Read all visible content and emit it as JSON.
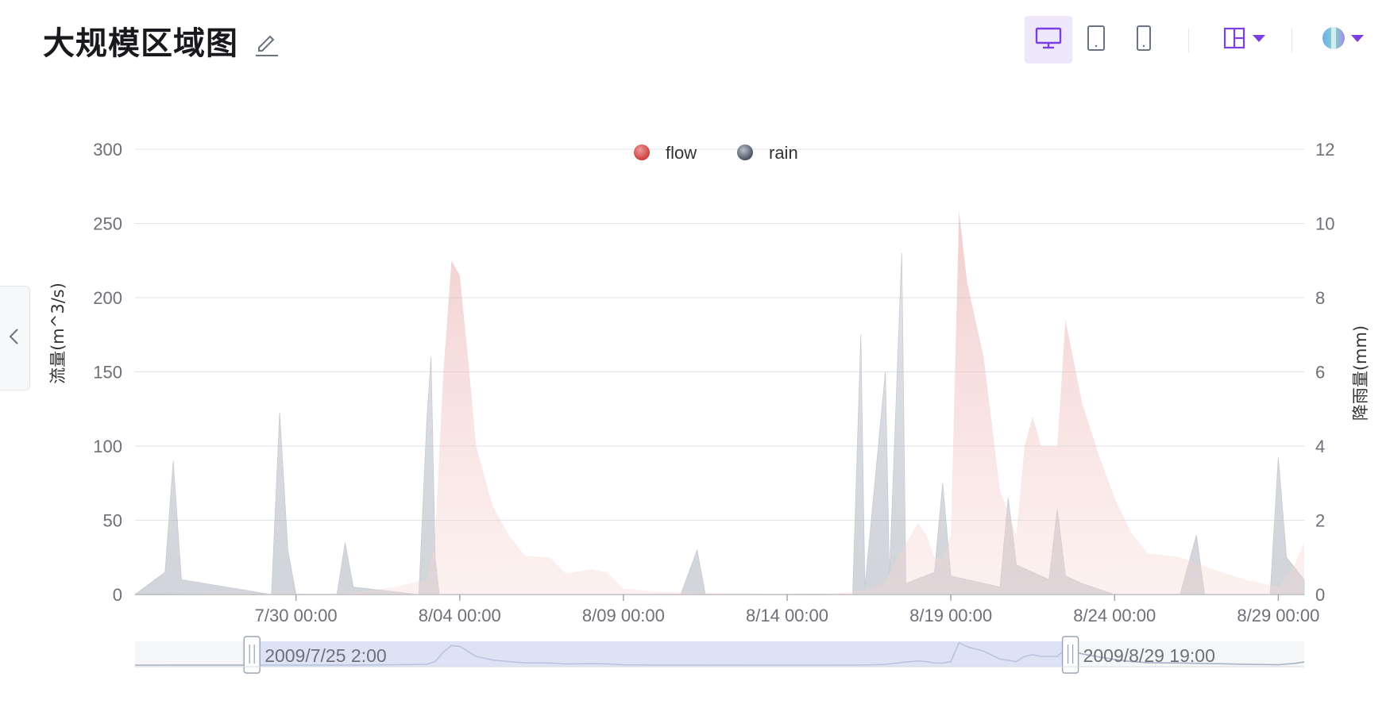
{
  "header": {
    "title": "大规模区域图",
    "icons": [
      "edit-icon",
      "desktop-icon",
      "tablet-icon",
      "mobile-icon",
      "layout-icon",
      "theme-icon"
    ],
    "accent": "#7b3fe4",
    "active_view": "desktop"
  },
  "sidebar_toggle": {
    "icon": "chevron-left-icon"
  },
  "chart_data": {
    "type": "area",
    "x_type": "time",
    "x_range": [
      "2009-07-25 02:00",
      "2009-08-29 19:00"
    ],
    "x_ticks": [
      "7/30 00:00",
      "8/04 00:00",
      "8/09 00:00",
      "8/14 00:00",
      "8/19 00:00",
      "8/24 00:00",
      "8/29 00:00"
    ],
    "y_left": {
      "label": "流量(m^3/s)",
      "range": [
        0,
        300
      ],
      "ticks": [
        "0",
        "50",
        "100",
        "150",
        "200",
        "250",
        "300"
      ]
    },
    "y_right": {
      "label": "降雨量(mm)",
      "range": [
        0,
        12
      ],
      "ticks": [
        "0",
        "2",
        "4",
        "6",
        "8",
        "10",
        "12"
      ],
      "inverse": false
    },
    "legend": {
      "position": "top-center",
      "items": [
        "flow",
        "rain"
      ]
    },
    "grid": true,
    "series": [
      {
        "name": "flow",
        "axis": "left",
        "color": "#d64a4a",
        "points": [
          [
            "2009-07-25 02:00",
            0
          ],
          [
            "2009-07-27 00:00",
            0.5
          ],
          [
            "2009-07-31 00:00",
            0.5
          ],
          [
            "2009-08-01 00:00",
            2
          ],
          [
            "2009-08-02 00:00",
            5
          ],
          [
            "2009-08-03 00:00",
            10
          ],
          [
            "2009-08-03 06:00",
            40
          ],
          [
            "2009-08-03 12:00",
            150
          ],
          [
            "2009-08-03 18:00",
            225
          ],
          [
            "2009-08-04 00:00",
            215
          ],
          [
            "2009-08-04 06:00",
            160
          ],
          [
            "2009-08-04 12:00",
            100
          ],
          [
            "2009-08-05 00:00",
            60
          ],
          [
            "2009-08-05 12:00",
            40
          ],
          [
            "2009-08-06 00:00",
            26
          ],
          [
            "2009-08-06 18:00",
            25
          ],
          [
            "2009-08-07 06:00",
            14
          ],
          [
            "2009-08-08 00:00",
            17
          ],
          [
            "2009-08-08 12:00",
            15
          ],
          [
            "2009-08-09 00:00",
            4
          ],
          [
            "2009-08-10 00:00",
            2
          ],
          [
            "2009-08-12 00:00",
            1
          ],
          [
            "2009-08-15 00:00",
            0
          ],
          [
            "2009-08-16 12:00",
            3
          ],
          [
            "2009-08-17 00:00",
            8
          ],
          [
            "2009-08-17 12:00",
            30
          ],
          [
            "2009-08-18 00:00",
            48
          ],
          [
            "2009-08-18 06:00",
            40
          ],
          [
            "2009-08-18 12:00",
            25
          ],
          [
            "2009-08-18 18:00",
            24
          ],
          [
            "2009-08-19 00:00",
            40
          ],
          [
            "2009-08-19 06:00",
            258
          ],
          [
            "2009-08-19 12:00",
            210
          ],
          [
            "2009-08-20 00:00",
            160
          ],
          [
            "2009-08-20 12:00",
            70
          ],
          [
            "2009-08-21 00:00",
            40
          ],
          [
            "2009-08-21 06:00",
            100
          ],
          [
            "2009-08-21 12:00",
            120
          ],
          [
            "2009-08-21 18:00",
            100
          ],
          [
            "2009-08-22 06:00",
            100
          ],
          [
            "2009-08-22 12:00",
            185
          ],
          [
            "2009-08-23 00:00",
            130
          ],
          [
            "2009-08-23 12:00",
            95
          ],
          [
            "2009-08-24 00:00",
            65
          ],
          [
            "2009-08-24 12:00",
            42
          ],
          [
            "2009-08-25 00:00",
            28
          ],
          [
            "2009-08-26 00:00",
            25
          ],
          [
            "2009-08-27 00:00",
            17
          ],
          [
            "2009-08-28 00:00",
            10
          ],
          [
            "2009-08-29 00:00",
            5
          ],
          [
            "2009-08-29 12:00",
            20
          ],
          [
            "2009-08-29 19:00",
            35
          ]
        ]
      },
      {
        "name": "rain",
        "axis": "right",
        "color": "#5a6478",
        "points": [
          [
            "2009-07-25 02:00",
            0
          ],
          [
            "2009-07-26 00:00",
            0.6
          ],
          [
            "2009-07-26 06:00",
            3.6
          ],
          [
            "2009-07-26 12:00",
            0.4
          ],
          [
            "2009-07-29 06:00",
            0
          ],
          [
            "2009-07-29 12:00",
            4.9
          ],
          [
            "2009-07-29 18:00",
            1.2
          ],
          [
            "2009-07-30 00:00",
            0
          ],
          [
            "2009-07-31 06:00",
            0
          ],
          [
            "2009-07-31 12:00",
            1.4
          ],
          [
            "2009-07-31 18:00",
            0.2
          ],
          [
            "2009-08-02 18:00",
            0
          ],
          [
            "2009-08-03 00:00",
            4.8
          ],
          [
            "2009-08-03 03:00",
            6.4
          ],
          [
            "2009-08-03 06:00",
            1
          ],
          [
            "2009-08-03 09:00",
            0
          ],
          [
            "2009-08-10 18:00",
            0
          ],
          [
            "2009-08-11 06:00",
            1.2
          ],
          [
            "2009-08-11 12:00",
            0
          ],
          [
            "2009-08-16 00:00",
            0
          ],
          [
            "2009-08-16 06:00",
            7
          ],
          [
            "2009-08-16 09:00",
            0.2
          ],
          [
            "2009-08-17 00:00",
            6
          ],
          [
            "2009-08-17 03:00",
            0.5
          ],
          [
            "2009-08-17 12:00",
            9.2
          ],
          [
            "2009-08-17 15:00",
            0.3
          ],
          [
            "2009-08-18 12:00",
            0.6
          ],
          [
            "2009-08-18 18:00",
            3
          ],
          [
            "2009-08-19 00:00",
            0.5
          ],
          [
            "2009-08-20 12:00",
            0.2
          ],
          [
            "2009-08-20 18:00",
            2.6
          ],
          [
            "2009-08-21 00:00",
            0.8
          ],
          [
            "2009-08-21 12:00",
            0.6
          ],
          [
            "2009-08-22 00:00",
            0.4
          ],
          [
            "2009-08-22 06:00",
            2.3
          ],
          [
            "2009-08-22 12:00",
            0.5
          ],
          [
            "2009-08-23 00:00",
            0.3
          ],
          [
            "2009-08-24 00:00",
            0
          ],
          [
            "2009-08-26 00:00",
            0
          ],
          [
            "2009-08-26 12:00",
            1.6
          ],
          [
            "2009-08-26 18:00",
            0
          ],
          [
            "2009-08-28 18:00",
            0
          ],
          [
            "2009-08-29 00:00",
            3.7
          ],
          [
            "2009-08-29 06:00",
            1
          ],
          [
            "2009-08-29 19:00",
            0.4
          ]
        ]
      }
    ],
    "data_zoom": {
      "start_label": "2009/7/25 2:00",
      "end_label": "2009/8/29 19:00",
      "window_start_fraction": 0.1,
      "window_end_fraction": 0.8
    }
  }
}
